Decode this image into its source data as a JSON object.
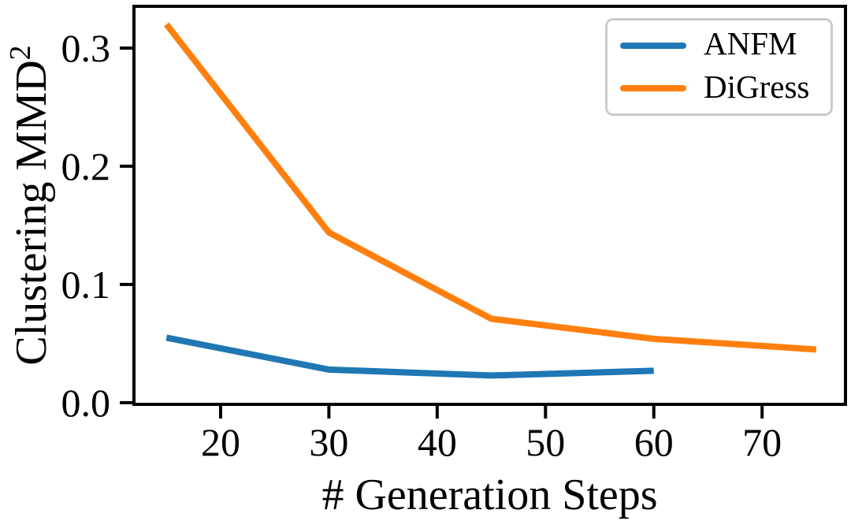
{
  "figure": {
    "background": "#ffffff",
    "axis_color": "#000000",
    "text_color": "#000000"
  },
  "chart_data": {
    "type": "line",
    "title": "",
    "xlabel": "# Generation Steps",
    "ylabel": "Clustering MMD²",
    "ylabel_base": "Clustering MMD",
    "ylabel_exponent": "2",
    "x_ticks": [
      20,
      30,
      40,
      50,
      60,
      70
    ],
    "x_tick_labels": [
      "20",
      "30",
      "40",
      "50",
      "60",
      "70"
    ],
    "y_ticks": [
      0.0,
      0.1,
      0.2,
      0.3
    ],
    "y_tick_labels": [
      "0.0",
      "0.1",
      "0.2",
      "0.3"
    ],
    "xlim": [
      12,
      77.7
    ],
    "ylim": [
      -0.0014,
      0.3353
    ],
    "grid": false,
    "legend": {
      "position": "upper right",
      "border_color": "#cccccc",
      "background": "#ffffff"
    },
    "series": [
      {
        "name": "ANFM",
        "color": "#1f77b4",
        "x": [
          15,
          30,
          45,
          60
        ],
        "y": [
          0.055,
          0.028,
          0.023,
          0.027
        ]
      },
      {
        "name": "DiGress",
        "color": "#ff7f0e",
        "x": [
          15,
          30,
          45,
          60,
          75
        ],
        "y": [
          0.32,
          0.144,
          0.071,
          0.054,
          0.045
        ]
      }
    ]
  }
}
